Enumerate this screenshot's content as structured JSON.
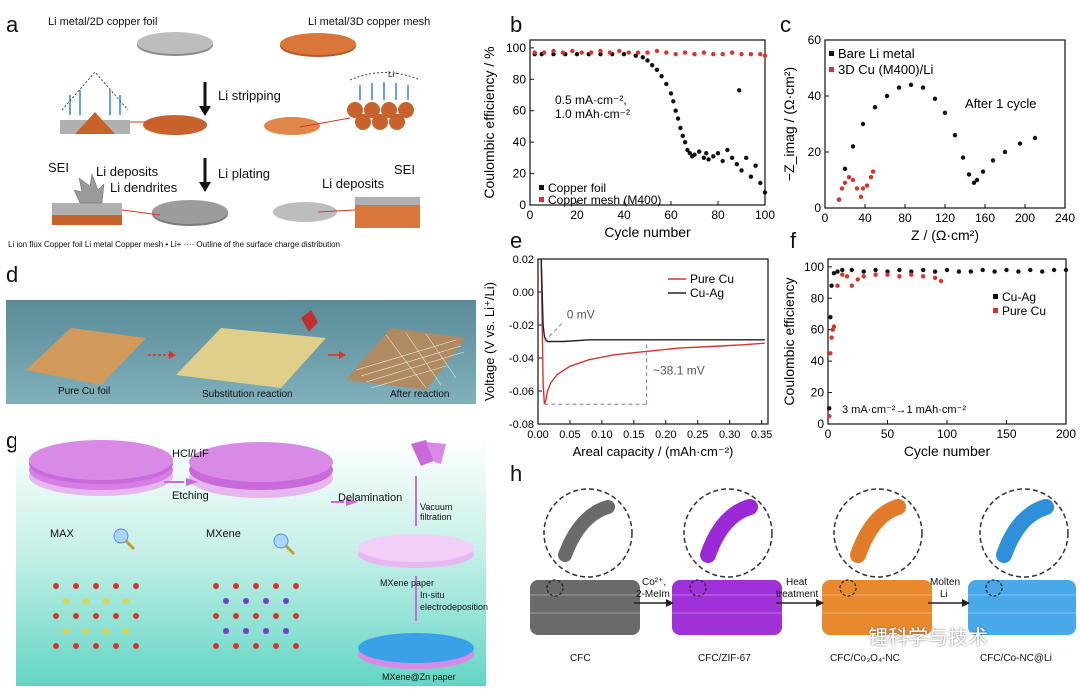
{
  "panel_a": {
    "label": "a",
    "top_left": "Li metal/2D copper foil",
    "top_right": "Li metal/3D copper mesh",
    "stripping": "Li stripping",
    "plating": "Li plating",
    "sei_left": "SEI",
    "deposits_left": "Li deposits",
    "dendrites": "Li dendrites",
    "deposits_right": "Li deposits",
    "sei_right": "SEI",
    "legend": "Li ion flux    Copper foil    Li metal    Copper mesh  • Li+  ···· Outline of the surface charge distribution",
    "li_plus": "Li⁺"
  },
  "panel_d": {
    "label": "d",
    "step1": "Pure Cu foil",
    "step2": "Substitution reaction",
    "step3": "After reaction"
  },
  "panel_g": {
    "label": "g",
    "etch_reagent": "HCl/LiF",
    "etching": "Etching",
    "delamination": "Delamination",
    "vacuum": "Vacuum filtration",
    "max": "MAX",
    "mxene": "MXene",
    "mxene_paper": "MXene paper",
    "in_situ": "In-situ",
    "electrodeposition": "electrodeposition",
    "mxene_zn": "MXene@Zn paper"
  },
  "panel_h": {
    "label": "h",
    "step1": "CFC",
    "arrow1a": "Co²⁺,",
    "arrow1b": "2-MeIm",
    "step2": "CFC/ZIF-67",
    "arrow2a": "Heat",
    "arrow2b": "treatment",
    "step3": "CFC/Co₃O₄-NC",
    "arrow3a": "Molten",
    "arrow3b": "Li",
    "step4": "CFC/Co-NC@Li",
    "watermark": "锂科学与技术"
  },
  "chart_data": [
    {
      "panel": "b",
      "type": "scatter",
      "xlabel": "Cycle number",
      "ylabel": "Coulombic efficiency / %",
      "xlim": [
        0,
        100
      ],
      "ylim": [
        0,
        105
      ],
      "xticks": [
        0,
        20,
        40,
        60,
        80,
        100
      ],
      "yticks": [
        0,
        20,
        40,
        60,
        80,
        100
      ],
      "annotation": [
        "0.5 mA·cm⁻²,",
        "1.0 mAh·cm⁻²"
      ],
      "legend": "bottom-left",
      "series": [
        {
          "name": "Copper foil",
          "color": "#111111",
          "x": [
            2,
            5,
            10,
            15,
            20,
            25,
            30,
            35,
            40,
            45,
            48,
            50,
            52,
            54,
            56,
            58,
            60,
            61,
            62,
            63,
            64,
            65,
            66,
            67,
            68,
            69,
            70,
            72,
            74,
            75,
            76,
            78,
            80,
            82,
            84,
            86,
            88,
            89,
            90,
            92,
            94,
            96,
            98,
            100
          ],
          "y": [
            96,
            96,
            96,
            96,
            96,
            96,
            96,
            96,
            96,
            95,
            94,
            92,
            89,
            86,
            82,
            77,
            71,
            66,
            60,
            55,
            49,
            44,
            40,
            35,
            33,
            31,
            32,
            34,
            30,
            33,
            29,
            31,
            33,
            28,
            35,
            30,
            26,
            73,
            22,
            30,
            18,
            25,
            14,
            8
          ]
        },
        {
          "name": "Copper mesh (M400)",
          "color": "#d9342b",
          "x": [
            2,
            6,
            10,
            14,
            18,
            22,
            26,
            30,
            34,
            38,
            42,
            46,
            50,
            54,
            58,
            62,
            66,
            70,
            74,
            78,
            82,
            86,
            90,
            94,
            98,
            100
          ],
          "y": [
            97,
            97,
            98,
            97,
            98,
            97,
            97,
            98,
            97,
            98,
            97,
            97,
            97,
            98,
            97,
            96,
            97,
            96,
            97,
            96,
            96,
            97,
            96,
            96,
            96,
            95
          ]
        }
      ]
    },
    {
      "panel": "c",
      "type": "scatter",
      "xlabel": "Z / (Ω·cm²)",
      "ylabel": "−Z_imag / (Ω·cm²)",
      "xlim": [
        0,
        240
      ],
      "ylim": [
        0,
        60
      ],
      "xticks": [
        0,
        40,
        80,
        120,
        160,
        200,
        240
      ],
      "yticks": [
        0,
        20,
        40,
        60
      ],
      "annotation": "After 1 cycle",
      "legend": "top-left",
      "series": [
        {
          "name": "Bare Li metal",
          "color": "#111111",
          "x": [
            14,
            20,
            28,
            38,
            50,
            62,
            74,
            86,
            98,
            110,
            120,
            130,
            138,
            144,
            149,
            152,
            158,
            168,
            180,
            195,
            210
          ],
          "y": [
            3,
            14,
            22,
            30,
            36,
            40,
            43,
            44,
            43,
            39,
            34,
            26,
            18,
            12,
            9,
            10,
            13,
            17,
            20,
            23,
            25
          ]
        },
        {
          "name": "3D Cu (M400)/Li",
          "color": "#d9342b",
          "x": [
            14,
            17,
            20,
            24,
            28,
            32,
            36,
            38,
            42,
            46,
            48
          ],
          "y": [
            3,
            7,
            9,
            11,
            10,
            7,
            4,
            7,
            8,
            11,
            13
          ]
        }
      ]
    },
    {
      "panel": "e",
      "type": "line",
      "xlabel": "Areal capacity / (mAh·cm⁻²)",
      "ylabel": "Voltage (V vs. Li⁺/Li)",
      "xlim": [
        0,
        0.36
      ],
      "ylim": [
        -0.08,
        0.02
      ],
      "xticks": [
        0.0,
        0.05,
        0.1,
        0.15,
        0.2,
        0.25,
        0.3,
        0.35
      ],
      "yticks": [
        0.02,
        0.0,
        -0.02,
        -0.04,
        -0.06,
        -0.08
      ],
      "annotations": [
        "0 mV",
        "~38.1 mV"
      ],
      "legend": "top-right",
      "series": [
        {
          "name": "Pure Cu",
          "color": "#d9342b",
          "x": [
            0.005,
            0.008,
            0.01,
            0.012,
            0.015,
            0.02,
            0.03,
            0.05,
            0.08,
            0.12,
            0.17,
            0.22,
            0.27,
            0.32,
            0.355
          ],
          "y": [
            0.02,
            -0.055,
            -0.068,
            -0.066,
            -0.06,
            -0.055,
            -0.05,
            -0.045,
            -0.041,
            -0.038,
            -0.036,
            -0.034,
            -0.033,
            -0.032,
            -0.031
          ]
        },
        {
          "name": "Cu-Ag",
          "color": "#222222",
          "x": [
            0.005,
            0.008,
            0.01,
            0.012,
            0.015,
            0.02,
            0.04,
            0.08,
            0.12,
            0.17,
            0.22,
            0.27,
            0.32,
            0.355
          ],
          "y": [
            0.02,
            -0.02,
            -0.027,
            -0.029,
            -0.03,
            -0.03,
            -0.03,
            -0.029,
            -0.029,
            -0.029,
            -0.029,
            -0.029,
            -0.029,
            -0.029
          ]
        }
      ]
    },
    {
      "panel": "f",
      "type": "scatter",
      "xlabel": "Cycle number",
      "ylabel": "Coulombic efficiency",
      "xlim": [
        0,
        200
      ],
      "ylim": [
        0,
        105
      ],
      "xticks": [
        0,
        50,
        100,
        150,
        200
      ],
      "yticks": [
        0,
        20,
        40,
        60,
        80,
        100
      ],
      "annotation": "3 mA·cm⁻²→1 mAh·cm⁻²",
      "legend": "right",
      "series": [
        {
          "name": "Cu-Ag",
          "color": "#111111",
          "x": [
            1,
            2,
            3,
            5,
            8,
            12,
            20,
            30,
            40,
            50,
            60,
            70,
            80,
            90,
            100,
            110,
            120,
            130,
            140,
            150,
            160,
            170,
            180,
            190,
            200
          ],
          "y": [
            10,
            68,
            88,
            96,
            97,
            98,
            98,
            97,
            98,
            97,
            98,
            97,
            98,
            97,
            98,
            97,
            97,
            98,
            97,
            98,
            97,
            98,
            97,
            98,
            98
          ]
        },
        {
          "name": "Pure Cu",
          "color": "#d9342b",
          "x": [
            1,
            2,
            3,
            4,
            5,
            8,
            12,
            16,
            20,
            25,
            30,
            40,
            50,
            60,
            70,
            80,
            90,
            95
          ],
          "y": [
            5,
            45,
            55,
            60,
            62,
            88,
            95,
            94,
            88,
            92,
            94,
            95,
            95,
            94,
            95,
            94,
            93,
            91
          ]
        }
      ]
    }
  ]
}
